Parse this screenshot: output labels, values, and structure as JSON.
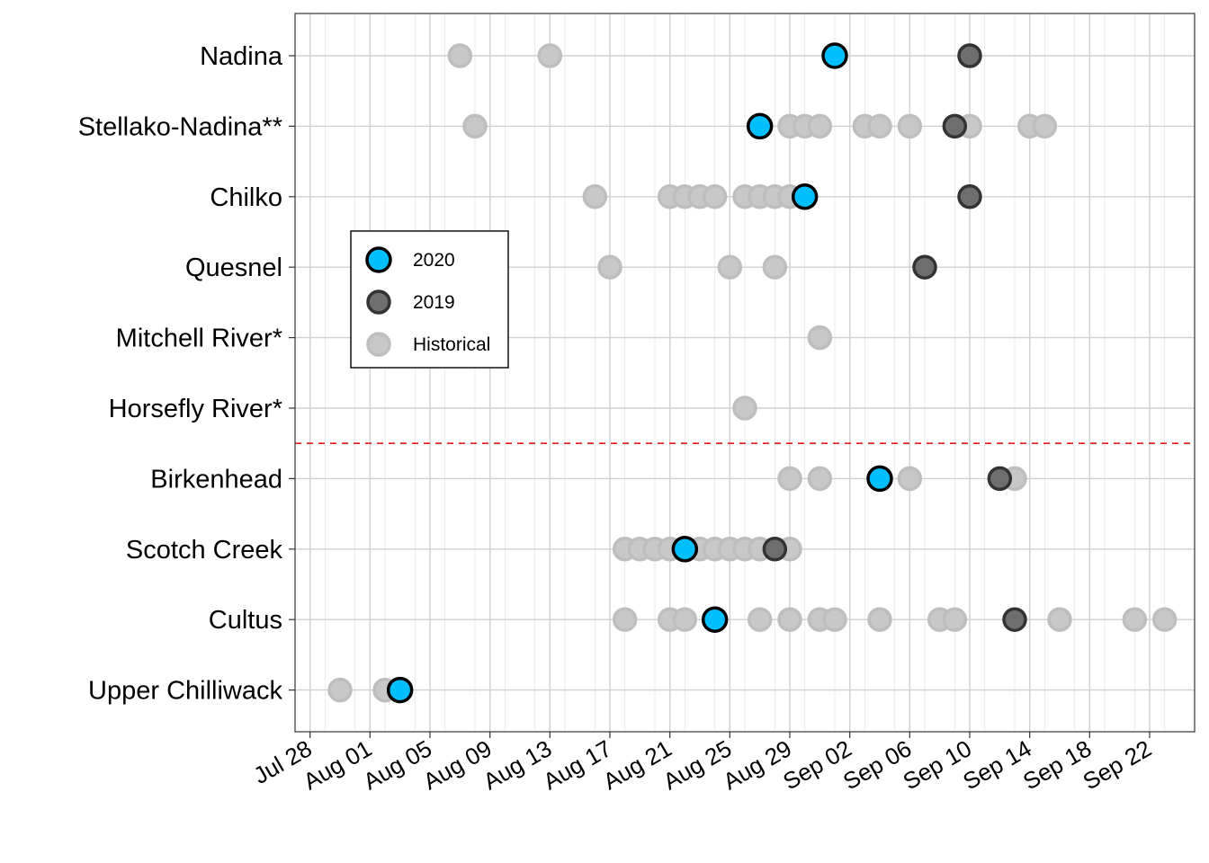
{
  "chart_data": {
    "type": "scatter",
    "x_axis": {
      "type": "date",
      "range": [
        "2020-07-27",
        "2020-09-25"
      ],
      "tick_labels": [
        "Jul 28",
        "Aug 01",
        "Aug 05",
        "Aug 09",
        "Aug 13",
        "Aug 17",
        "Aug 21",
        "Aug 25",
        "Aug 29",
        "Sep 02",
        "Sep 06",
        "Sep 10",
        "Sep 14",
        "Sep 18",
        "Sep 22"
      ],
      "tick_dates": [
        "2020-07-28",
        "2020-08-01",
        "2020-08-05",
        "2020-08-09",
        "2020-08-13",
        "2020-08-17",
        "2020-08-21",
        "2020-08-25",
        "2020-08-29",
        "2020-09-02",
        "2020-09-06",
        "2020-09-10",
        "2020-09-14",
        "2020-09-18",
        "2020-09-22"
      ]
    },
    "categories": [
      "Nadina",
      "Stellako-Nadina**",
      "Chilko",
      "Quesnel",
      "Mitchell River*",
      "Horsefly River*",
      "Birkenhead",
      "Scotch Creek",
      "Cultus",
      "Upper Chilliwack"
    ],
    "separator_after_category": "Horsefly River*",
    "grid": true,
    "legend_position": "left-inside",
    "colors": {
      "2020": "#00BFFF",
      "2019": "#6E6E6E",
      "Historical": "#BEBEBE",
      "separator": "#E41A1C"
    },
    "series": [
      {
        "name": "Historical",
        "points": [
          {
            "category": "Nadina",
            "dates": [
              "2020-08-07",
              "2020-08-13"
            ]
          },
          {
            "category": "Stellako-Nadina**",
            "dates": [
              "2020-08-08",
              "2020-08-29",
              "2020-08-30",
              "2020-08-31",
              "2020-09-03",
              "2020-09-04",
              "2020-09-06",
              "2020-09-10",
              "2020-09-14",
              "2020-09-15"
            ]
          },
          {
            "category": "Chilko",
            "dates": [
              "2020-08-16",
              "2020-08-21",
              "2020-08-22",
              "2020-08-23",
              "2020-08-24",
              "2020-08-26",
              "2020-08-27",
              "2020-08-28",
              "2020-08-29"
            ]
          },
          {
            "category": "Quesnel",
            "dates": [
              "2020-08-17",
              "2020-08-25",
              "2020-08-28"
            ]
          },
          {
            "category": "Mitchell River*",
            "dates": [
              "2020-08-31"
            ]
          },
          {
            "category": "Horsefly River*",
            "dates": [
              "2020-08-26"
            ]
          },
          {
            "category": "Birkenhead",
            "dates": [
              "2020-08-29",
              "2020-08-31",
              "2020-09-06",
              "2020-09-13"
            ]
          },
          {
            "category": "Scotch Creek",
            "dates": [
              "2020-08-18",
              "2020-08-19",
              "2020-08-20",
              "2020-08-21",
              "2020-08-23",
              "2020-08-24",
              "2020-08-25",
              "2020-08-26",
              "2020-08-27",
              "2020-08-29"
            ]
          },
          {
            "category": "Cultus",
            "dates": [
              "2020-08-18",
              "2020-08-21",
              "2020-08-22",
              "2020-08-27",
              "2020-08-29",
              "2020-08-31",
              "2020-09-01",
              "2020-09-04",
              "2020-09-08",
              "2020-09-09",
              "2020-09-16",
              "2020-09-21",
              "2020-09-23"
            ]
          },
          {
            "category": "Upper Chilliwack",
            "dates": [
              "2020-07-30",
              "2020-08-02"
            ]
          }
        ]
      },
      {
        "name": "2019",
        "points": [
          {
            "category": "Nadina",
            "dates": [
              "2020-09-10"
            ]
          },
          {
            "category": "Stellako-Nadina**",
            "dates": [
              "2020-09-09"
            ]
          },
          {
            "category": "Chilko",
            "dates": [
              "2020-09-10"
            ]
          },
          {
            "category": "Quesnel",
            "dates": [
              "2020-09-07"
            ]
          },
          {
            "category": "Birkenhead",
            "dates": [
              "2020-09-12"
            ]
          },
          {
            "category": "Scotch Creek",
            "dates": [
              "2020-08-28"
            ]
          },
          {
            "category": "Cultus",
            "dates": [
              "2020-09-13"
            ]
          }
        ]
      },
      {
        "name": "2020",
        "points": [
          {
            "category": "Nadina",
            "dates": [
              "2020-09-01"
            ]
          },
          {
            "category": "Stellako-Nadina**",
            "dates": [
              "2020-08-27"
            ]
          },
          {
            "category": "Chilko",
            "dates": [
              "2020-08-30"
            ]
          },
          {
            "category": "Birkenhead",
            "dates": [
              "2020-09-04"
            ]
          },
          {
            "category": "Scotch Creek",
            "dates": [
              "2020-08-22"
            ]
          },
          {
            "category": "Cultus",
            "dates": [
              "2020-08-24"
            ]
          },
          {
            "category": "Upper Chilliwack",
            "dates": [
              "2020-08-03"
            ]
          }
        ]
      }
    ],
    "legend": [
      "2020",
      "2019",
      "Historical"
    ]
  }
}
